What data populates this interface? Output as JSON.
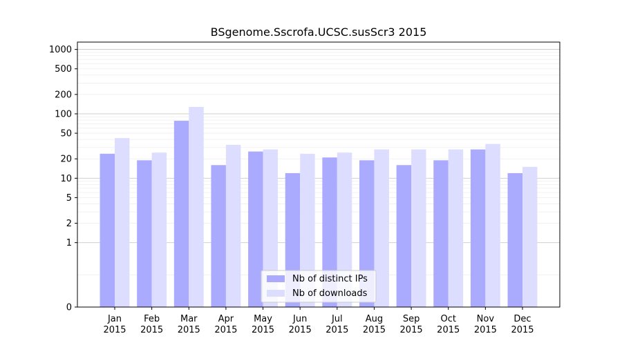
{
  "chart_data": {
    "type": "bar",
    "title": "BSgenome.Sscrofa.UCSC.susScr3 2015",
    "xlabel": "",
    "ylabel": "",
    "y_scale": "symlog",
    "ylim": [
      0,
      1300
    ],
    "y_ticks": [
      "0",
      "1",
      "2",
      "5",
      "10",
      "20",
      "50",
      "100",
      "200",
      "500",
      "1000"
    ],
    "categories": [
      {
        "month": "Jan",
        "year": "2015"
      },
      {
        "month": "Feb",
        "year": "2015"
      },
      {
        "month": "Mar",
        "year": "2015"
      },
      {
        "month": "Apr",
        "year": "2015"
      },
      {
        "month": "May",
        "year": "2015"
      },
      {
        "month": "Jun",
        "year": "2015"
      },
      {
        "month": "Jul",
        "year": "2015"
      },
      {
        "month": "Aug",
        "year": "2015"
      },
      {
        "month": "Sep",
        "year": "2015"
      },
      {
        "month": "Oct",
        "year": "2015"
      },
      {
        "month": "Nov",
        "year": "2015"
      },
      {
        "month": "Dec",
        "year": "2015"
      }
    ],
    "series": [
      {
        "name": "Nb of distinct IPs",
        "color": "#aaaaff",
        "values": [
          24,
          19,
          78,
          16,
          26,
          12,
          21,
          19,
          16,
          19,
          28,
          12
        ]
      },
      {
        "name": "Nb of downloads",
        "color": "#ddddff",
        "values": [
          42,
          25,
          128,
          33,
          28,
          24,
          25,
          28,
          28,
          28,
          34,
          15
        ]
      }
    ],
    "legend_position": "lower-center",
    "grid": true
  }
}
